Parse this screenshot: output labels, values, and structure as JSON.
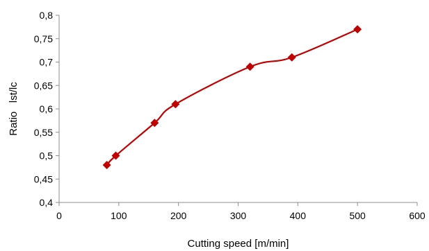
{
  "chart_data": {
    "type": "scatter",
    "title": "",
    "xlabel": "Cutting speed [m/min]",
    "ylabel": "Ratio   lst/lc",
    "xlim": [
      0,
      600
    ],
    "ylim": [
      0.4,
      0.8
    ],
    "x_ticks": [
      0,
      100,
      200,
      300,
      400,
      500,
      600
    ],
    "x_tick_labels": [
      "0",
      "100",
      "200",
      "300",
      "400",
      "500",
      "600"
    ],
    "y_ticks": [
      0.4,
      0.45,
      0.5,
      0.55,
      0.6,
      0.65,
      0.7,
      0.75,
      0.8
    ],
    "y_tick_labels": [
      "0,4",
      "0,45",
      "0,5",
      "0,55",
      "0,6",
      "0,65",
      "0,7",
      "0,75",
      "0,8"
    ],
    "grid": false,
    "legend": "none",
    "line_style": "smooth",
    "marker": "diamond",
    "series": [
      {
        "color": "#c00000",
        "x": [
          80,
          95,
          160,
          195,
          320,
          390,
          500
        ],
        "y": [
          0.48,
          0.5,
          0.57,
          0.61,
          0.69,
          0.71,
          0.77
        ]
      }
    ]
  }
}
